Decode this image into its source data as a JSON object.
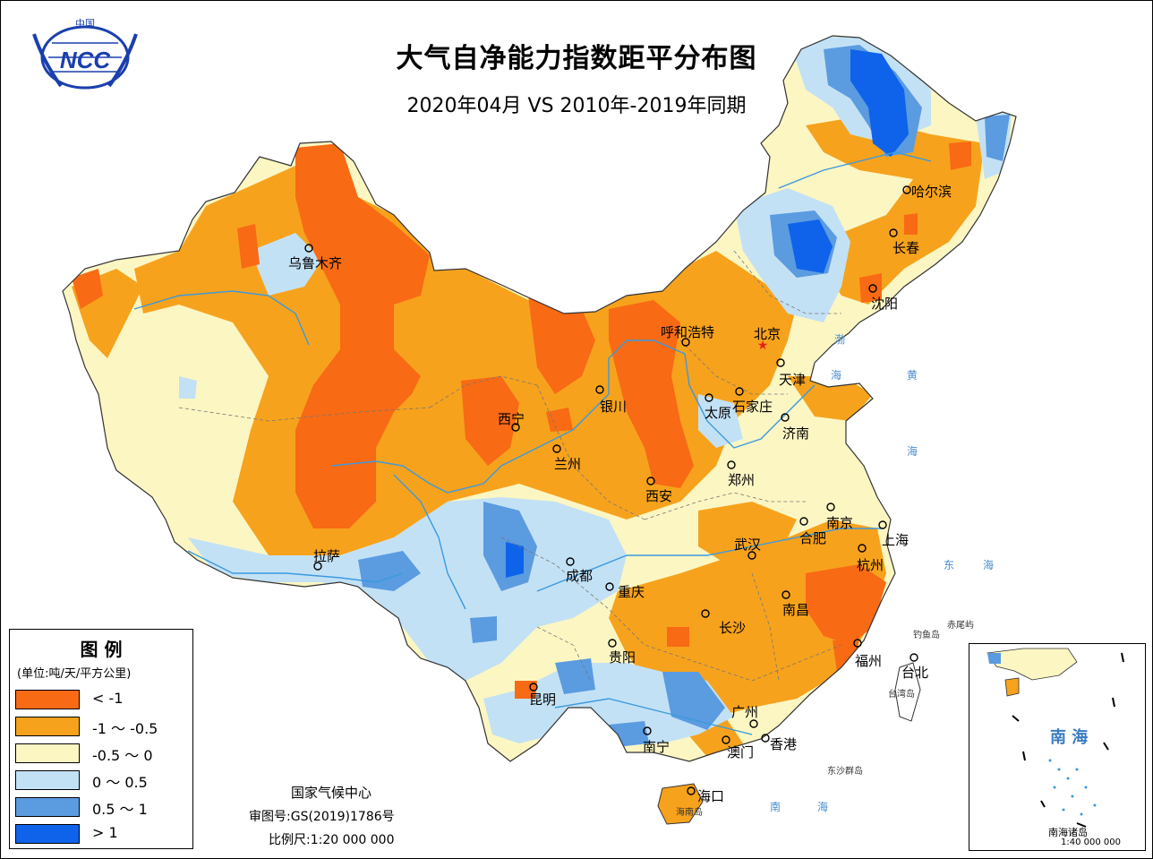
{
  "map": {
    "title": "大气自净能力指数距平分布图",
    "subtitle": "2020年04月 VS 2010年-2019年同期",
    "logo_text": "NCC",
    "logo_top_text": "中国"
  },
  "legend": {
    "title": "图 例",
    "unit": "(单位:吨/天/平方公里)",
    "items": [
      {
        "label": "< -1",
        "color": "#f86a14"
      },
      {
        "label": "-1 ～ -0.5",
        "color": "#f7a21c"
      },
      {
        "label": "-0.5 ～ 0",
        "color": "#fcf6c3"
      },
      {
        "label": "0 ～ 0.5",
        "color": "#c3e1f5"
      },
      {
        "label": "0.5 ～ 1",
        "color": "#5b9be0"
      },
      {
        "label": "> 1",
        "color": "#0f63ea"
      }
    ]
  },
  "cities": [
    {
      "name": "乌鲁木齐"
    },
    {
      "name": "哈尔滨"
    },
    {
      "name": "长春"
    },
    {
      "name": "沈阳"
    },
    {
      "name": "呼和浩特"
    },
    {
      "name": "北京"
    },
    {
      "name": "天津"
    },
    {
      "name": "石家庄"
    },
    {
      "name": "太原"
    },
    {
      "name": "济南"
    },
    {
      "name": "银川"
    },
    {
      "name": "西宁"
    },
    {
      "name": "兰州"
    },
    {
      "name": "西安"
    },
    {
      "name": "郑州"
    },
    {
      "name": "南京"
    },
    {
      "name": "上海"
    },
    {
      "name": "合肥"
    },
    {
      "name": "武汉"
    },
    {
      "name": "杭州"
    },
    {
      "name": "拉萨"
    },
    {
      "name": "成都"
    },
    {
      "name": "重庆"
    },
    {
      "name": "南昌"
    },
    {
      "name": "长沙"
    },
    {
      "name": "福州"
    },
    {
      "name": "台北"
    },
    {
      "name": "贵阳"
    },
    {
      "name": "昆明"
    },
    {
      "name": "广州"
    },
    {
      "name": "南宁"
    },
    {
      "name": "澳门"
    },
    {
      "name": "香港"
    },
    {
      "name": "海口"
    }
  ],
  "seas": {
    "bohai": "渤",
    "bohai2": "海",
    "huang": "黄",
    "huang2": "海",
    "dong": "东",
    "dong2": "海",
    "nan": "南",
    "nan2": "海"
  },
  "small_labels": {
    "diaoyu": "钓鱼岛",
    "chiwei": "赤尾屿",
    "taiwan": "台湾岛",
    "dongsha": "东沙群岛",
    "hainan": "海南岛"
  },
  "footer": {
    "center": "国家气候中心",
    "approval": "审图号:GS(2019)1786号",
    "scale": "比例尺:1:20 000 000"
  },
  "inset": {
    "sea_label": "南 海",
    "islands": "南海诸岛",
    "scale": "1:40 000 000"
  }
}
